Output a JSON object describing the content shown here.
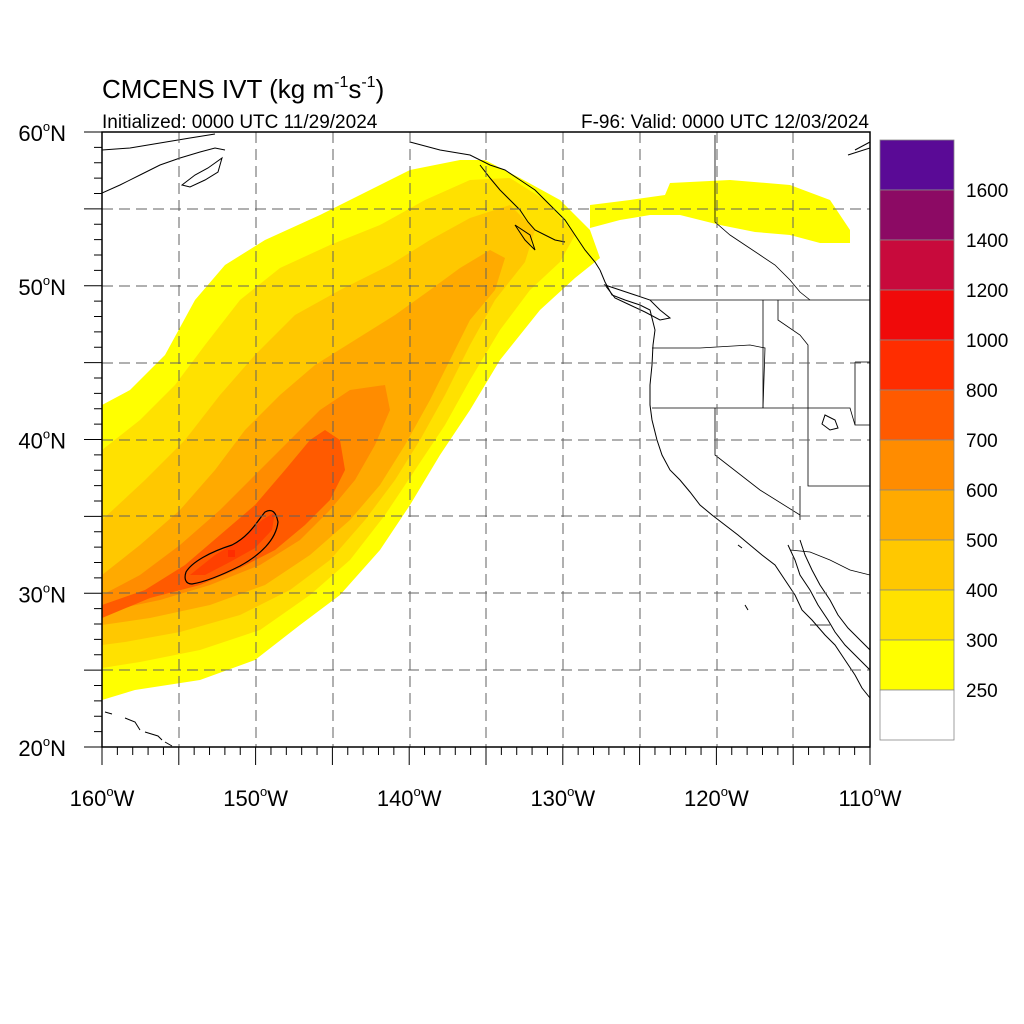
{
  "header": {
    "title_main": "CMCENS IVT (kg m",
    "title_exp1": "-1",
    "title_mid": "s",
    "title_exp2": "-1",
    "title_end": ")",
    "initialized": "Initialized: 0000 UTC 11/29/2024",
    "valid": "F-96: Valid: 0000 UTC 12/03/2024"
  },
  "axes": {
    "lat_labels": [
      {
        "value": 60,
        "text": "60"
      },
      {
        "value": 50,
        "text": "50"
      },
      {
        "value": 40,
        "text": "40"
      },
      {
        "value": 30,
        "text": "30"
      },
      {
        "value": 20,
        "text": "20"
      }
    ],
    "lat_suffix": "N",
    "lon_labels": [
      {
        "value": -160,
        "text": "160"
      },
      {
        "value": -150,
        "text": "150"
      },
      {
        "value": -140,
        "text": "140"
      },
      {
        "value": -130,
        "text": "130"
      },
      {
        "value": -120,
        "text": "120"
      },
      {
        "value": -110,
        "text": "110"
      }
    ],
    "lon_suffix": "W",
    "lon_range": [
      -160,
      -110
    ],
    "lat_range": [
      20,
      60
    ],
    "grid": true
  },
  "colorbar": {
    "levels": [
      "250",
      "300",
      "400",
      "500",
      "600",
      "700",
      "800",
      "1000",
      "1200",
      "1400",
      "1600"
    ],
    "colors": [
      "#ffffff",
      "#ffff00",
      "#ffe100",
      "#ffc800",
      "#ffaa00",
      "#ff8c00",
      "#ff5a00",
      "#ff2d00",
      "#f00a0a",
      "#c80a3c",
      "#8c0a64",
      "#5a0a96"
    ]
  },
  "colors": {
    "coast": "#000000",
    "grid": "#606060"
  }
}
